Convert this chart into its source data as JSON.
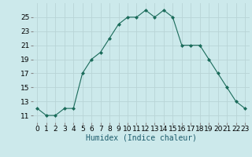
{
  "xlabel": "Humidex (Indice chaleur)",
  "x": [
    0,
    1,
    2,
    3,
    4,
    5,
    6,
    7,
    8,
    9,
    10,
    11,
    12,
    13,
    14,
    15,
    16,
    17,
    18,
    19,
    20,
    21,
    22,
    23
  ],
  "y": [
    12,
    11,
    11,
    12,
    12,
    17,
    19,
    20,
    22,
    24,
    25,
    25,
    26,
    25,
    26,
    25,
    21,
    21,
    21,
    19,
    17,
    15,
    13,
    12
  ],
  "ylim": [
    10,
    27
  ],
  "yticks": [
    11,
    13,
    15,
    17,
    19,
    21,
    23,
    25
  ],
  "line_color": "#1a6b5a",
  "marker": "D",
  "marker_size": 2.0,
  "bg_color": "#cce9eb",
  "grid_color": "#b8d4d6",
  "label_fontsize": 7,
  "tick_fontsize": 6.5
}
